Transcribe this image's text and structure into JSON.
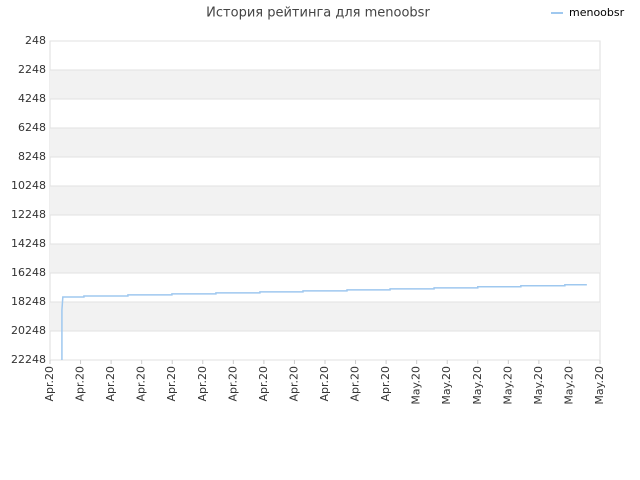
{
  "chart_data": {
    "type": "line",
    "title": "История рейтинга для menoobsr",
    "series": [
      {
        "name": "menoobsr",
        "color": "#9fc8ef",
        "x": [
          0.39,
          0.39,
          0.42,
          1.11,
          1.11,
          2.55,
          2.55,
          3.99,
          3.99,
          5.43,
          5.43,
          6.87,
          6.87,
          8.28,
          8.28,
          9.72,
          9.72,
          11.13,
          11.13,
          12.57,
          12.57,
          14.0,
          14.0,
          15.41,
          15.41,
          16.85,
          16.85,
          17.57
        ],
        "values": [
          22248,
          18800,
          17900,
          17900,
          17830,
          17830,
          17760,
          17760,
          17690,
          17690,
          17620,
          17620,
          17550,
          17550,
          17480,
          17480,
          17410,
          17410,
          17340,
          17340,
          17270,
          17270,
          17200,
          17200,
          17130,
          17130,
          17060,
          17060
        ]
      }
    ],
    "xlim": [
      0,
      18
    ],
    "xticks": [
      {
        "value": 0,
        "label": "Apr.20"
      },
      {
        "value": 1,
        "label": "Apr.20"
      },
      {
        "value": 2,
        "label": "Apr.20"
      },
      {
        "value": 3,
        "label": "Apr.20"
      },
      {
        "value": 4,
        "label": "Apr.20"
      },
      {
        "value": 5,
        "label": "Apr.20"
      },
      {
        "value": 6,
        "label": "Apr.20"
      },
      {
        "value": 7,
        "label": "Apr.20"
      },
      {
        "value": 8,
        "label": "Apr.20"
      },
      {
        "value": 9,
        "label": "Apr.20"
      },
      {
        "value": 10,
        "label": "Apr.20"
      },
      {
        "value": 11,
        "label": "Apr.20"
      },
      {
        "value": 12,
        "label": "May.20"
      },
      {
        "value": 13,
        "label": "May.20"
      },
      {
        "value": 14,
        "label": "May.20"
      },
      {
        "value": 15,
        "label": "May.20"
      },
      {
        "value": 16,
        "label": "May.20"
      },
      {
        "value": 17,
        "label": "May.20"
      },
      {
        "value": 18,
        "label": "May.20"
      }
    ],
    "ylim": [
      248,
      22248
    ],
    "y_inverted": true,
    "yticks": [
      248,
      2248,
      4248,
      6248,
      8248,
      10248,
      12248,
      14248,
      16248,
      18248,
      20248,
      22248
    ],
    "grid": true,
    "band_color": "#f2f2f2",
    "legend": "top-right"
  }
}
